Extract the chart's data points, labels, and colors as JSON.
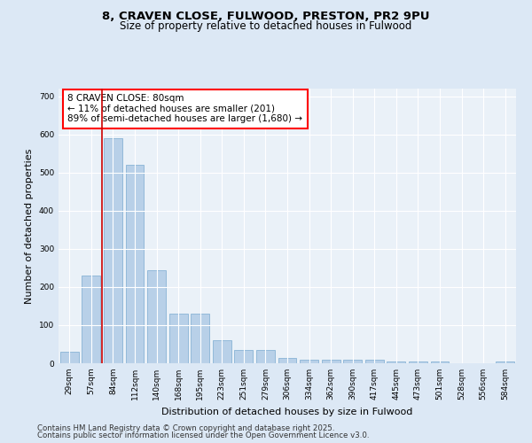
{
  "title_line1": "8, CRAVEN CLOSE, FULWOOD, PRESTON, PR2 9PU",
  "title_line2": "Size of property relative to detached houses in Fulwood",
  "xlabel": "Distribution of detached houses by size in Fulwood",
  "ylabel": "Number of detached properties",
  "categories": [
    "29sqm",
    "57sqm",
    "84sqm",
    "112sqm",
    "140sqm",
    "168sqm",
    "195sqm",
    "223sqm",
    "251sqm",
    "279sqm",
    "306sqm",
    "334sqm",
    "362sqm",
    "390sqm",
    "417sqm",
    "445sqm",
    "473sqm",
    "501sqm",
    "528sqm",
    "556sqm",
    "584sqm"
  ],
  "values": [
    30,
    230,
    590,
    520,
    245,
    130,
    130,
    60,
    35,
    35,
    15,
    10,
    10,
    10,
    10,
    5,
    5,
    5,
    0,
    0,
    5
  ],
  "bar_color": "#b8d0e8",
  "bar_edge_color": "#7aaad0",
  "red_line_x": 1.5,
  "annotation_text": "8 CRAVEN CLOSE: 80sqm\n← 11% of detached houses are smaller (201)\n89% of semi-detached houses are larger (1,680) →",
  "annotation_box_color": "white",
  "annotation_box_edge_color": "red",
  "red_line_color": "#cc0000",
  "ylim": [
    0,
    720
  ],
  "yticks": [
    0,
    100,
    200,
    300,
    400,
    500,
    600,
    700
  ],
  "footer_line1": "Contains HM Land Registry data © Crown copyright and database right 2025.",
  "footer_line2": "Contains public sector information licensed under the Open Government Licence v3.0.",
  "bg_color": "#dce8f5",
  "plot_bg_color": "#eaf1f8",
  "grid_color": "white",
  "title_fontsize": 9.5,
  "subtitle_fontsize": 8.5,
  "axis_label_fontsize": 8,
  "tick_fontsize": 6.5,
  "annotation_fontsize": 7.5,
  "footer_fontsize": 6.2
}
